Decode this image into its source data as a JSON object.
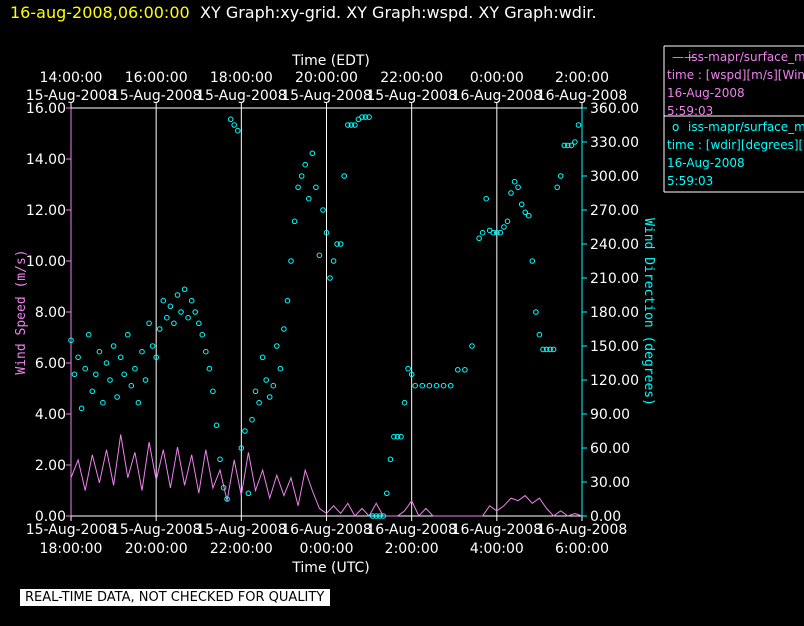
{
  "header": {
    "datetime": "16-aug-2008,06:00:00",
    "graphs": "XY Graph:xy-grid.  XY Graph:wspd.  XY Graph:wdir.",
    "datetime_color": "#ffff00",
    "graphs_color": "#ffffff"
  },
  "legend": [
    {
      "marker": "——",
      "name": "iss-mapr/surface_m",
      "desc": "time : [wspd][m/s][Wind",
      "date": "16-Aug-2008",
      "time": "5:59:03",
      "color": "#ee82ee"
    },
    {
      "marker": "o",
      "name": "iss-mapr/surface_m",
      "desc": "time : [wdir][degrees][W",
      "date": "16-Aug-2008",
      "time": "5:59:03",
      "color": "#00ffff"
    }
  ],
  "notice": "REAL-TIME DATA, NOT CHECKED FOR QUALITY",
  "colors": {
    "wspd": "#ee82ee",
    "wdir": "#00ffff",
    "grid": "#ffffff",
    "text": "#ffffff",
    "background": "#000000"
  },
  "chart_data": {
    "type": "scatter",
    "top_axis": {
      "label": "Time (EDT)",
      "ticks": [
        {
          "time": "14:00:00",
          "date": "15-Aug-2008"
        },
        {
          "time": "16:00:00",
          "date": "15-Aug-2008"
        },
        {
          "time": "18:00:00",
          "date": "15-Aug-2008"
        },
        {
          "time": "20:00:00",
          "date": "15-Aug-2008"
        },
        {
          "time": "22:00:00",
          "date": "15-Aug-2008"
        },
        {
          "time": "0:00:00",
          "date": "16-Aug-2008"
        },
        {
          "time": "2:00:00",
          "date": "16-Aug-2008"
        }
      ]
    },
    "bottom_axis": {
      "label": "Time (UTC)",
      "ticks": [
        {
          "date": "15-Aug-2008",
          "time": "18:00:00"
        },
        {
          "date": "15-Aug-2008",
          "time": "20:00:00"
        },
        {
          "date": "15-Aug-2008",
          "time": "22:00:00"
        },
        {
          "date": "16-Aug-2008",
          "time": "0:00:00"
        },
        {
          "date": "16-Aug-2008",
          "time": "2:00:00"
        },
        {
          "date": "16-Aug-2008",
          "time": "4:00:00"
        },
        {
          "date": "16-Aug-2008",
          "time": "6:00:00"
        }
      ],
      "range": [
        "15-Aug-2008 18:00:00",
        "16-Aug-2008 06:00:00"
      ]
    },
    "left_axis": {
      "label": "Wind Speed (m/s)",
      "ylim": [
        0,
        16
      ],
      "ticks": [
        "0.00",
        "2.00",
        "4.00",
        "6.00",
        "8.00",
        "10.00",
        "12.00",
        "14.00",
        "16.00"
      ]
    },
    "right_axis": {
      "label": "Wind Direction (degrees)",
      "ylim": [
        0,
        360
      ],
      "ticks": [
        "0.00",
        "30.00",
        "60.00",
        "90.00",
        "120.00",
        "150.00",
        "180.00",
        "210.00",
        "240.00",
        "270.00",
        "300.00",
        "330.00",
        "360.00"
      ]
    },
    "grid": "vertical lines at every 2 hours",
    "series": [
      {
        "name": "iss-mapr/surface_m time : [wspd][m/s][Wind",
        "style": "line",
        "axis": "left",
        "points": [
          [
            "15-Aug-2008 18:00",
            1.5
          ],
          [
            "15-Aug-2008 18:10",
            2.2
          ],
          [
            "15-Aug-2008 18:20",
            1.0
          ],
          [
            "15-Aug-2008 18:30",
            2.4
          ],
          [
            "15-Aug-2008 18:40",
            1.3
          ],
          [
            "15-Aug-2008 18:50",
            2.6
          ],
          [
            "15-Aug-2008 19:00",
            1.2
          ],
          [
            "15-Aug-2008 19:10",
            3.2
          ],
          [
            "15-Aug-2008 19:20",
            1.5
          ],
          [
            "15-Aug-2008 19:30",
            2.5
          ],
          [
            "15-Aug-2008 19:40",
            1.0
          ],
          [
            "15-Aug-2008 19:50",
            2.9
          ],
          [
            "15-Aug-2008 20:00",
            1.4
          ],
          [
            "15-Aug-2008 20:10",
            2.6
          ],
          [
            "15-Aug-2008 20:20",
            1.1
          ],
          [
            "15-Aug-2008 20:30",
            2.7
          ],
          [
            "15-Aug-2008 20:40",
            1.2
          ],
          [
            "15-Aug-2008 20:50",
            2.4
          ],
          [
            "15-Aug-2008 21:00",
            0.9
          ],
          [
            "15-Aug-2008 21:10",
            2.6
          ],
          [
            "15-Aug-2008 21:20",
            1.1
          ],
          [
            "15-Aug-2008 21:30",
            1.8
          ],
          [
            "15-Aug-2008 21:40",
            0.6
          ],
          [
            "15-Aug-2008 21:50",
            2.2
          ],
          [
            "15-Aug-2008 22:00",
            0.8
          ],
          [
            "15-Aug-2008 22:10",
            2.5
          ],
          [
            "15-Aug-2008 22:20",
            1.0
          ],
          [
            "15-Aug-2008 22:30",
            1.8
          ],
          [
            "15-Aug-2008 22:40",
            0.7
          ],
          [
            "15-Aug-2008 22:50",
            1.6
          ],
          [
            "15-Aug-2008 23:00",
            0.8
          ],
          [
            "15-Aug-2008 23:10",
            1.5
          ],
          [
            "15-Aug-2008 23:20",
            0.4
          ],
          [
            "15-Aug-2008 23:30",
            1.8
          ],
          [
            "15-Aug-2008 23:40",
            1.0
          ],
          [
            "15-Aug-2008 23:50",
            0.3
          ],
          [
            "16-Aug-2008 00:00",
            0.1
          ],
          [
            "16-Aug-2008 00:10",
            0.4
          ],
          [
            "16-Aug-2008 00:20",
            0.1
          ],
          [
            "16-Aug-2008 00:30",
            0.5
          ],
          [
            "16-Aug-2008 00:40",
            0.0
          ],
          [
            "16-Aug-2008 00:50",
            0.3
          ],
          [
            "16-Aug-2008 01:00",
            0.0
          ],
          [
            "16-Aug-2008 01:10",
            0.5
          ],
          [
            "16-Aug-2008 01:20",
            0.0
          ],
          [
            "16-Aug-2008 01:30",
            0.0
          ],
          [
            "16-Aug-2008 01:40",
            0.0
          ],
          [
            "16-Aug-2008 01:50",
            0.2
          ],
          [
            "16-Aug-2008 02:00",
            0.6
          ],
          [
            "16-Aug-2008 02:10",
            0.0
          ],
          [
            "16-Aug-2008 02:20",
            0.3
          ],
          [
            "16-Aug-2008 02:30",
            0.0
          ],
          [
            "16-Aug-2008 02:40",
            0.0
          ],
          [
            "16-Aug-2008 02:50",
            0.0
          ],
          [
            "16-Aug-2008 03:00",
            0.0
          ],
          [
            "16-Aug-2008 03:10",
            0.0
          ],
          [
            "16-Aug-2008 03:20",
            0.0
          ],
          [
            "16-Aug-2008 03:30",
            0.0
          ],
          [
            "16-Aug-2008 03:40",
            0.0
          ],
          [
            "16-Aug-2008 03:50",
            0.4
          ],
          [
            "16-Aug-2008 04:00",
            0.2
          ],
          [
            "16-Aug-2008 04:10",
            0.4
          ],
          [
            "16-Aug-2008 04:20",
            0.7
          ],
          [
            "16-Aug-2008 04:30",
            0.6
          ],
          [
            "16-Aug-2008 04:40",
            0.8
          ],
          [
            "16-Aug-2008 04:50",
            0.5
          ],
          [
            "16-Aug-2008 05:00",
            0.7
          ],
          [
            "16-Aug-2008 05:10",
            0.3
          ],
          [
            "16-Aug-2008 05:20",
            0.0
          ],
          [
            "16-Aug-2008 05:30",
            0.2
          ],
          [
            "16-Aug-2008 05:40",
            0.0
          ],
          [
            "16-Aug-2008 05:50",
            0.1
          ],
          [
            "16-Aug-2008 06:00",
            0.0
          ]
        ]
      },
      {
        "name": "iss-mapr/surface_m time : [wdir][degrees][W",
        "style": "circle-markers",
        "axis": "right",
        "points": [
          [
            "15-Aug-2008 18:00",
            155
          ],
          [
            "15-Aug-2008 18:05",
            125
          ],
          [
            "15-Aug-2008 18:10",
            140
          ],
          [
            "15-Aug-2008 18:15",
            95
          ],
          [
            "15-Aug-2008 18:20",
            130
          ],
          [
            "15-Aug-2008 18:25",
            160
          ],
          [
            "15-Aug-2008 18:30",
            110
          ],
          [
            "15-Aug-2008 18:35",
            125
          ],
          [
            "15-Aug-2008 18:40",
            145
          ],
          [
            "15-Aug-2008 18:45",
            100
          ],
          [
            "15-Aug-2008 18:50",
            135
          ],
          [
            "15-Aug-2008 18:55",
            120
          ],
          [
            "15-Aug-2008 19:00",
            150
          ],
          [
            "15-Aug-2008 19:05",
            105
          ],
          [
            "15-Aug-2008 19:10",
            140
          ],
          [
            "15-Aug-2008 19:15",
            125
          ],
          [
            "15-Aug-2008 19:20",
            160
          ],
          [
            "15-Aug-2008 19:25",
            115
          ],
          [
            "15-Aug-2008 19:30",
            130
          ],
          [
            "15-Aug-2008 19:35",
            100
          ],
          [
            "15-Aug-2008 19:40",
            145
          ],
          [
            "15-Aug-2008 19:45",
            120
          ],
          [
            "15-Aug-2008 19:50",
            170
          ],
          [
            "15-Aug-2008 19:55",
            150
          ],
          [
            "15-Aug-2008 20:00",
            140
          ],
          [
            "15-Aug-2008 20:05",
            165
          ],
          [
            "15-Aug-2008 20:10",
            190
          ],
          [
            "15-Aug-2008 20:15",
            175
          ],
          [
            "15-Aug-2008 20:20",
            185
          ],
          [
            "15-Aug-2008 20:25",
            170
          ],
          [
            "15-Aug-2008 20:30",
            195
          ],
          [
            "15-Aug-2008 20:35",
            180
          ],
          [
            "15-Aug-2008 20:40",
            200
          ],
          [
            "15-Aug-2008 20:45",
            175
          ],
          [
            "15-Aug-2008 20:50",
            190
          ],
          [
            "15-Aug-2008 20:55",
            180
          ],
          [
            "15-Aug-2008 21:00",
            170
          ],
          [
            "15-Aug-2008 21:05",
            160
          ],
          [
            "15-Aug-2008 21:10",
            145
          ],
          [
            "15-Aug-2008 21:15",
            130
          ],
          [
            "15-Aug-2008 21:20",
            110
          ],
          [
            "15-Aug-2008 21:25",
            80
          ],
          [
            "15-Aug-2008 21:30",
            50
          ],
          [
            "15-Aug-2008 21:35",
            25
          ],
          [
            "15-Aug-2008 21:40",
            15
          ],
          [
            "15-Aug-2008 21:45",
            350
          ],
          [
            "15-Aug-2008 21:50",
            345
          ],
          [
            "15-Aug-2008 21:55",
            340
          ],
          [
            "15-Aug-2008 22:00",
            60
          ],
          [
            "15-Aug-2008 22:05",
            75
          ],
          [
            "15-Aug-2008 22:10",
            20
          ],
          [
            "15-Aug-2008 22:15",
            85
          ],
          [
            "15-Aug-2008 22:20",
            110
          ],
          [
            "15-Aug-2008 22:25",
            100
          ],
          [
            "15-Aug-2008 22:30",
            140
          ],
          [
            "15-Aug-2008 22:35",
            120
          ],
          [
            "15-Aug-2008 22:40",
            105
          ],
          [
            "15-Aug-2008 22:45",
            115
          ],
          [
            "15-Aug-2008 22:50",
            150
          ],
          [
            "15-Aug-2008 22:55",
            130
          ],
          [
            "15-Aug-2008 23:00",
            165
          ],
          [
            "15-Aug-2008 23:05",
            190
          ],
          [
            "15-Aug-2008 23:10",
            225
          ],
          [
            "15-Aug-2008 23:15",
            260
          ],
          [
            "15-Aug-2008 23:20",
            290
          ],
          [
            "15-Aug-2008 23:25",
            300
          ],
          [
            "15-Aug-2008 23:30",
            310
          ],
          [
            "15-Aug-2008 23:35",
            280
          ],
          [
            "15-Aug-2008 23:40",
            320
          ],
          [
            "15-Aug-2008 23:45",
            290
          ],
          [
            "15-Aug-2008 23:50",
            230
          ],
          [
            "15-Aug-2008 23:55",
            270
          ],
          [
            "16-Aug-2008 00:00",
            250
          ],
          [
            "16-Aug-2008 00:05",
            210
          ],
          [
            "16-Aug-2008 00:10",
            225
          ],
          [
            "16-Aug-2008 00:15",
            240
          ],
          [
            "16-Aug-2008 00:20",
            240
          ],
          [
            "16-Aug-2008 00:25",
            300
          ],
          [
            "16-Aug-2008 00:30",
            345
          ],
          [
            "16-Aug-2008 00:35",
            345
          ],
          [
            "16-Aug-2008 00:40",
            345
          ],
          [
            "16-Aug-2008 00:45",
            350
          ],
          [
            "16-Aug-2008 00:50",
            352
          ],
          [
            "16-Aug-2008 00:55",
            352
          ],
          [
            "16-Aug-2008 01:00",
            352
          ],
          [
            "16-Aug-2008 01:05",
            0
          ],
          [
            "16-Aug-2008 01:10",
            0
          ],
          [
            "16-Aug-2008 01:15",
            0
          ],
          [
            "16-Aug-2008 01:20",
            0
          ],
          [
            "16-Aug-2008 01:25",
            20
          ],
          [
            "16-Aug-2008 01:30",
            50
          ],
          [
            "16-Aug-2008 01:35",
            70
          ],
          [
            "16-Aug-2008 01:40",
            70
          ],
          [
            "16-Aug-2008 01:45",
            70
          ],
          [
            "16-Aug-2008 01:50",
            100
          ],
          [
            "16-Aug-2008 01:55",
            130
          ],
          [
            "16-Aug-2008 02:00",
            125
          ],
          [
            "16-Aug-2008 02:05",
            115
          ],
          [
            "16-Aug-2008 02:15",
            115
          ],
          [
            "16-Aug-2008 02:25",
            115
          ],
          [
            "16-Aug-2008 02:35",
            115
          ],
          [
            "16-Aug-2008 02:45",
            115
          ],
          [
            "16-Aug-2008 02:55",
            115
          ],
          [
            "16-Aug-2008 03:05",
            129
          ],
          [
            "16-Aug-2008 03:15",
            129
          ],
          [
            "16-Aug-2008 03:25",
            150
          ],
          [
            "16-Aug-2008 03:35",
            245
          ],
          [
            "16-Aug-2008 03:40",
            250
          ],
          [
            "16-Aug-2008 03:45",
            280
          ],
          [
            "16-Aug-2008 03:50",
            252
          ],
          [
            "16-Aug-2008 03:55",
            250
          ],
          [
            "16-Aug-2008 04:00",
            250
          ],
          [
            "16-Aug-2008 04:05",
            250
          ],
          [
            "16-Aug-2008 04:10",
            255
          ],
          [
            "16-Aug-2008 04:15",
            260
          ],
          [
            "16-Aug-2008 04:20",
            285
          ],
          [
            "16-Aug-2008 04:25",
            295
          ],
          [
            "16-Aug-2008 04:30",
            290
          ],
          [
            "16-Aug-2008 04:35",
            275
          ],
          [
            "16-Aug-2008 04:40",
            268
          ],
          [
            "16-Aug-2008 04:45",
            265
          ],
          [
            "16-Aug-2008 04:50",
            225
          ],
          [
            "16-Aug-2008 04:55",
            180
          ],
          [
            "16-Aug-2008 05:00",
            160
          ],
          [
            "16-Aug-2008 05:05",
            147
          ],
          [
            "16-Aug-2008 05:10",
            147
          ],
          [
            "16-Aug-2008 05:15",
            147
          ],
          [
            "16-Aug-2008 05:20",
            147
          ],
          [
            "16-Aug-2008 05:25",
            290
          ],
          [
            "16-Aug-2008 05:30",
            300
          ],
          [
            "16-Aug-2008 05:35",
            327
          ],
          [
            "16-Aug-2008 05:40",
            327
          ],
          [
            "16-Aug-2008 05:45",
            327
          ],
          [
            "16-Aug-2008 05:50",
            330
          ],
          [
            "16-Aug-2008 05:55",
            345
          ]
        ]
      }
    ]
  }
}
